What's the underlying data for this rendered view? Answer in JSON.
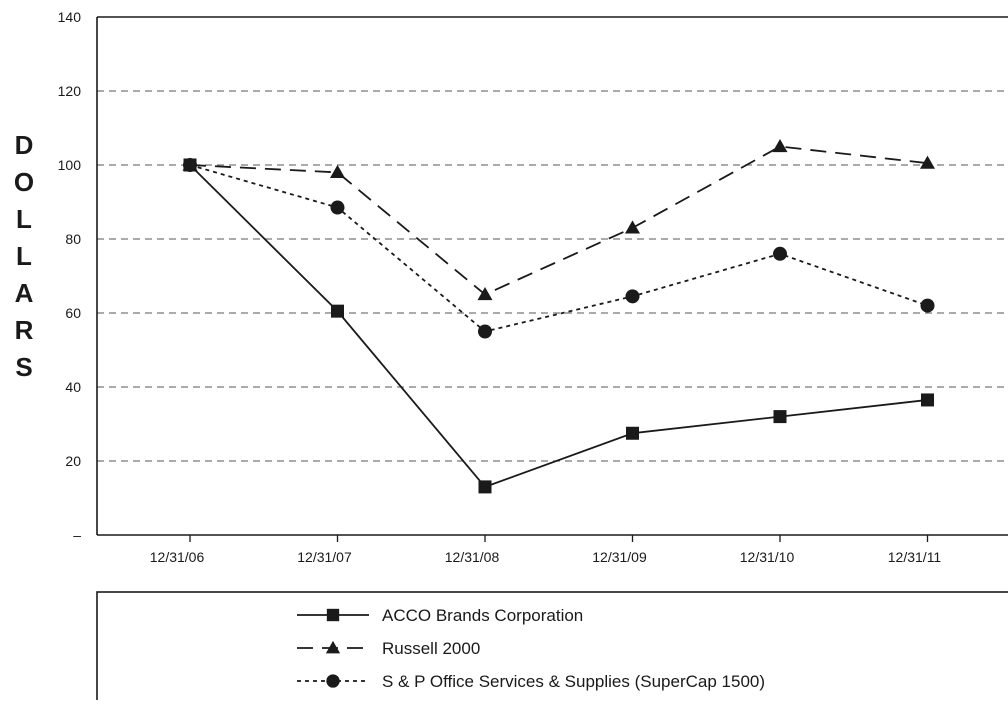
{
  "chart_data": {
    "type": "line",
    "title": "",
    "xlabel": "",
    "ylabel": "DOLLARS",
    "categories": [
      "12/31/06",
      "12/31/07",
      "12/31/08",
      "12/31/09",
      "12/31/10",
      "12/31/11"
    ],
    "ylim": [
      0,
      140
    ],
    "yticks": [
      {
        "value": 0,
        "label": "–"
      },
      {
        "value": 20,
        "label": "20"
      },
      {
        "value": 40,
        "label": "40"
      },
      {
        "value": 60,
        "label": "60"
      },
      {
        "value": 80,
        "label": "80"
      },
      {
        "value": 100,
        "label": "100"
      },
      {
        "value": 120,
        "label": "120"
      },
      {
        "value": 140,
        "label": "140"
      }
    ],
    "grid": true,
    "legend_position": "bottom",
    "series": [
      {
        "name": "ACCO Brands Corporation",
        "values": [
          100,
          60.5,
          13,
          27.5,
          32,
          36.5
        ],
        "marker": "square",
        "line_style": "solid"
      },
      {
        "name": "Russell 2000",
        "values": [
          100,
          98,
          65,
          83,
          105,
          100.5
        ],
        "marker": "triangle",
        "line_style": "dashed"
      },
      {
        "name": "S & P Office Services & Supplies (SuperCap 1500)",
        "values": [
          100,
          88.5,
          55,
          64.5,
          76,
          62
        ],
        "marker": "circle",
        "line_style": "dotted"
      }
    ],
    "colors": {
      "line": "#1a1a1a",
      "grid": "#777777",
      "background": "#ffffff"
    }
  }
}
